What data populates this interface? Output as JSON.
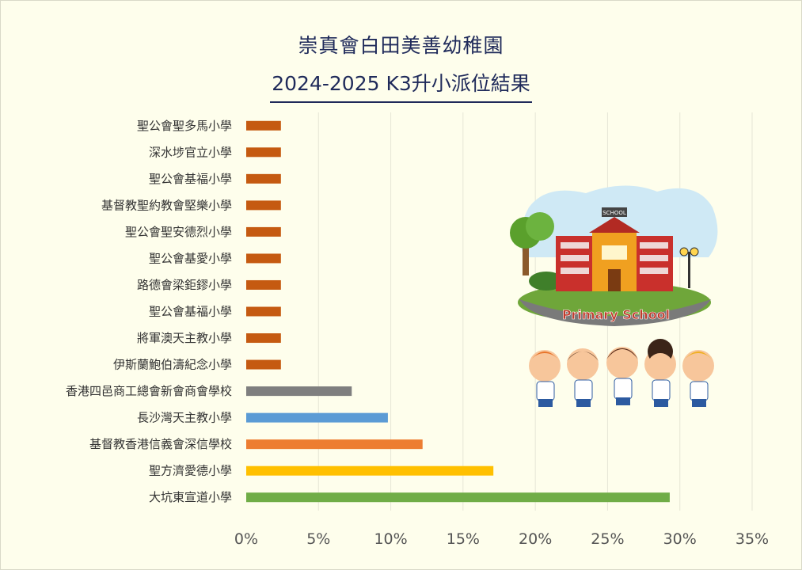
{
  "title_line1": "崇真會白田美善幼稚園",
  "title_line2": "2024-2025 K3升小派位結果",
  "picture_label": "Primary School",
  "picture_sign": "SCHOOL",
  "chart_data": {
    "type": "bar",
    "orientation": "horizontal",
    "categories": [
      "聖公會聖多馬小學",
      "深水埗官立小學",
      "聖公會基福小學",
      "基督教聖約教會堅樂小學",
      "聖公會聖安德烈小學",
      "聖公會基愛小學",
      "路德會梁鉅鏐小學",
      "聖公會基福小學",
      "將軍澳天主教小學",
      "伊斯蘭鮑伯濤紀念小學",
      "香港四邑商工總會新會商會學校",
      "長沙灣天主教小學",
      "基督教香港信義會深信學校",
      "聖方濟愛德小學",
      "大坑東宣道小學"
    ],
    "values": [
      2.4,
      2.4,
      2.4,
      2.4,
      2.4,
      2.4,
      2.4,
      2.4,
      2.4,
      2.4,
      7.3,
      9.8,
      12.2,
      17.1,
      29.3
    ],
    "colors": [
      "#c55a11",
      "#c55a11",
      "#c55a11",
      "#c55a11",
      "#c55a11",
      "#c55a11",
      "#c55a11",
      "#c55a11",
      "#c55a11",
      "#c55a11",
      "#7f7f7f",
      "#5b9bd5",
      "#ed7d31",
      "#ffc000",
      "#70ad47"
    ],
    "xlim": [
      0,
      35
    ],
    "xticks": [
      "0%",
      "5%",
      "10%",
      "15%",
      "20%",
      "25%",
      "30%",
      "35%"
    ],
    "grid": true,
    "legend": "none"
  }
}
